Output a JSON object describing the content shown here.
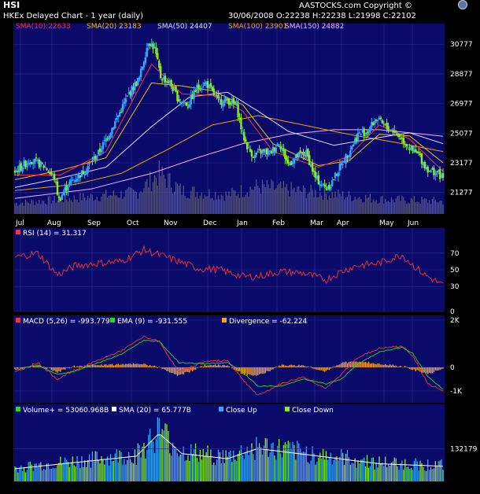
{
  "header": {
    "symbol": "HSI",
    "subtitle": "HKEx  Delayed Chart - 1 year (daily)",
    "copyright": "AASTOCKS.com Copyright ©",
    "quote": "30/06/2008   O:22238  H:22238  L:21998  C:22102"
  },
  "colors": {
    "background": "#000000",
    "panel": "#0a0a6a",
    "price_up": "#33a8ff",
    "price_down": "#88ee22",
    "sma10": "#ff3030",
    "sma20": "#f0c000",
    "sma50": "#d8d8ff",
    "sma100": "#f0a000",
    "sma150": "#f0b0ff",
    "rsi": "#ff3030",
    "macd": "#ff3030",
    "ema": "#22dd22",
    "divergence": "#ffa020",
    "volume_sma": "#ffffff"
  },
  "legends": {
    "price": [
      {
        "label": "SMA(10):22633",
        "color": "#ff3030"
      },
      {
        "label": "SMA(20) 23183",
        "color": "#f0c000"
      },
      {
        "label": "SMA(50) 24407",
        "color": "#d8d8ff"
      },
      {
        "label": "SMA(100) 23901",
        "color": "#f0a000"
      },
      {
        "label": "SMA(150) 24882",
        "color": "#f0b0ff"
      }
    ],
    "rsi": [
      {
        "label": "RSI (14) = 31.317",
        "color": "#ff3030"
      }
    ],
    "macd": [
      {
        "label": "MACD (5,26) = -993.779",
        "color": "#ff3030"
      },
      {
        "label": "EMA (9) = -931.555",
        "color": "#22dd22"
      },
      {
        "label": "Divergence = -62.224",
        "color": "#ffa020"
      }
    ],
    "volume": [
      {
        "label": "Volume+ = 53060.968B",
        "color": "#22dd22"
      },
      {
        "label": "SMA (20) = 65.777B",
        "color": "#ffffff"
      },
      {
        "label": "Close Up",
        "color": "#33a8ff"
      },
      {
        "label": "Close Down",
        "color": "#88ee22"
      }
    ]
  },
  "chart_data": [
    {
      "type": "candlestick",
      "title": "HSI",
      "x_labels": [
        "Jul",
        "Aug",
        "Sep",
        "Oct",
        "Nov",
        "Dec",
        "Jan",
        "Feb",
        "Mar",
        "Apr",
        "May",
        "Jun"
      ],
      "y_ticks": [
        "30777",
        "28877",
        "26977",
        "25077",
        "23177",
        "21277"
      ],
      "ylim": [
        19900,
        32100
      ],
      "close_keypoints": [
        [
          0,
          22600
        ],
        [
          10,
          23400
        ],
        [
          20,
          22900
        ],
        [
          26,
          22200
        ],
        [
          29,
          20800
        ],
        [
          35,
          21800
        ],
        [
          45,
          22600
        ],
        [
          55,
          23800
        ],
        [
          65,
          25600
        ],
        [
          75,
          27600
        ],
        [
          82,
          28600
        ],
        [
          88,
          31000
        ],
        [
          92,
          30500
        ],
        [
          96,
          28700
        ],
        [
          102,
          28300
        ],
        [
          108,
          27200
        ],
        [
          114,
          26900
        ],
        [
          120,
          28000
        ],
        [
          126,
          28300
        ],
        [
          134,
          27100
        ],
        [
          140,
          27200
        ],
        [
          146,
          26800
        ],
        [
          150,
          25000
        ],
        [
          154,
          24000
        ],
        [
          158,
          23600
        ],
        [
          162,
          23900
        ],
        [
          168,
          23800
        ],
        [
          174,
          24500
        ],
        [
          180,
          23100
        ],
        [
          186,
          23600
        ],
        [
          192,
          23800
        ],
        [
          198,
          22200
        ],
        [
          204,
          21600
        ],
        [
          208,
          21800
        ],
        [
          214,
          22900
        ],
        [
          220,
          23900
        ],
        [
          226,
          25000
        ],
        [
          232,
          25200
        ],
        [
          238,
          26000
        ],
        [
          244,
          25500
        ],
        [
          250,
          25200
        ],
        [
          256,
          24600
        ],
        [
          262,
          23900
        ],
        [
          266,
          23700
        ],
        [
          270,
          23000
        ],
        [
          274,
          22600
        ],
        [
          278,
          22600
        ],
        [
          282,
          22100
        ]
      ],
      "sma_keypoints": {
        "sma10": [
          [
            0,
            22400
          ],
          [
            30,
            22400
          ],
          [
            60,
            23900
          ],
          [
            90,
            29500
          ],
          [
            110,
            27600
          ],
          [
            130,
            27500
          ],
          [
            150,
            26500
          ],
          [
            170,
            23900
          ],
          [
            200,
            22900
          ],
          [
            220,
            23600
          ],
          [
            240,
            25600
          ],
          [
            260,
            24700
          ],
          [
            282,
            22633
          ]
        ],
        "sma20": [
          [
            0,
            22100
          ],
          [
            30,
            22700
          ],
          [
            60,
            23500
          ],
          [
            90,
            28300
          ],
          [
            110,
            28100
          ],
          [
            130,
            27800
          ],
          [
            150,
            26900
          ],
          [
            170,
            24400
          ],
          [
            200,
            23000
          ],
          [
            220,
            23300
          ],
          [
            240,
            25000
          ],
          [
            260,
            24900
          ],
          [
            282,
            23183
          ]
        ],
        "sma50": [
          [
            0,
            21600
          ],
          [
            30,
            22200
          ],
          [
            60,
            22900
          ],
          [
            90,
            25500
          ],
          [
            115,
            27400
          ],
          [
            140,
            27700
          ],
          [
            160,
            26500
          ],
          [
            180,
            25200
          ],
          [
            210,
            24300
          ],
          [
            240,
            24800
          ],
          [
            260,
            25100
          ],
          [
            282,
            24407
          ]
        ],
        "sma100": [
          [
            0,
            21400
          ],
          [
            40,
            21800
          ],
          [
            70,
            22500
          ],
          [
            100,
            24000
          ],
          [
            130,
            25600
          ],
          [
            160,
            26200
          ],
          [
            190,
            25600
          ],
          [
            220,
            25000
          ],
          [
            250,
            24500
          ],
          [
            282,
            23901
          ]
        ],
        "sma150": [
          [
            0,
            20900
          ],
          [
            50,
            21500
          ],
          [
            90,
            22500
          ],
          [
            120,
            23500
          ],
          [
            150,
            24400
          ],
          [
            180,
            25000
          ],
          [
            210,
            25300
          ],
          [
            240,
            25300
          ],
          [
            282,
            24882
          ]
        ]
      },
      "volume_keypoints": [
        [
          0,
          0.25
        ],
        [
          80,
          0.5
        ],
        [
          95,
          0.95
        ],
        [
          110,
          0.55
        ],
        [
          140,
          0.45
        ],
        [
          160,
          0.65
        ],
        [
          200,
          0.5
        ],
        [
          240,
          0.35
        ],
        [
          282,
          0.3
        ]
      ]
    },
    {
      "type": "line",
      "title": "RSI (14)",
      "yticks": [
        0,
        30,
        50,
        70
      ],
      "ylim": [
        0,
        100
      ],
      "rsi_keypoints": [
        [
          0,
          65
        ],
        [
          15,
          70
        ],
        [
          28,
          44
        ],
        [
          40,
          55
        ],
        [
          55,
          58
        ],
        [
          70,
          60
        ],
        [
          85,
          74
        ],
        [
          95,
          68
        ],
        [
          108,
          60
        ],
        [
          120,
          52
        ],
        [
          135,
          50
        ],
        [
          150,
          42
        ],
        [
          160,
          42
        ],
        [
          175,
          48
        ],
        [
          190,
          46
        ],
        [
          205,
          38
        ],
        [
          215,
          48
        ],
        [
          225,
          55
        ],
        [
          240,
          58
        ],
        [
          255,
          68
        ],
        [
          262,
          56
        ],
        [
          270,
          44
        ],
        [
          282,
          31.317
        ]
      ]
    },
    {
      "type": "line+bar",
      "title": "MACD",
      "yticks": [
        "2K",
        "0",
        "-1K"
      ],
      "ylim": [
        -1500,
        2200
      ],
      "macd_keypoints": [
        [
          0,
          -200
        ],
        [
          15,
          200
        ],
        [
          28,
          -500
        ],
        [
          40,
          -100
        ],
        [
          55,
          300
        ],
        [
          70,
          700
        ],
        [
          85,
          1300
        ],
        [
          95,
          1100
        ],
        [
          108,
          -200
        ],
        [
          125,
          250
        ],
        [
          140,
          300
        ],
        [
          150,
          -500
        ],
        [
          160,
          -1200
        ],
        [
          175,
          -700
        ],
        [
          190,
          -400
        ],
        [
          205,
          -900
        ],
        [
          215,
          -300
        ],
        [
          225,
          400
        ],
        [
          240,
          800
        ],
        [
          255,
          900
        ],
        [
          262,
          500
        ],
        [
          272,
          -700
        ],
        [
          282,
          -993.779
        ]
      ],
      "ema_keypoints": [
        [
          0,
          -100
        ],
        [
          15,
          100
        ],
        [
          28,
          -300
        ],
        [
          40,
          -150
        ],
        [
          55,
          200
        ],
        [
          70,
          550
        ],
        [
          85,
          1150
        ],
        [
          95,
          1100
        ],
        [
          108,
          200
        ],
        [
          125,
          150
        ],
        [
          140,
          200
        ],
        [
          150,
          -200
        ],
        [
          160,
          -800
        ],
        [
          175,
          -800
        ],
        [
          190,
          -500
        ],
        [
          205,
          -700
        ],
        [
          215,
          -500
        ],
        [
          225,
          100
        ],
        [
          240,
          650
        ],
        [
          255,
          850
        ],
        [
          262,
          600
        ],
        [
          272,
          -400
        ],
        [
          282,
          -931.555
        ]
      ]
    },
    {
      "type": "bar",
      "title": "Volume",
      "yticks": [
        "132179"
      ],
      "note": "volume bars colored by Close Up / Close Down"
    }
  ]
}
